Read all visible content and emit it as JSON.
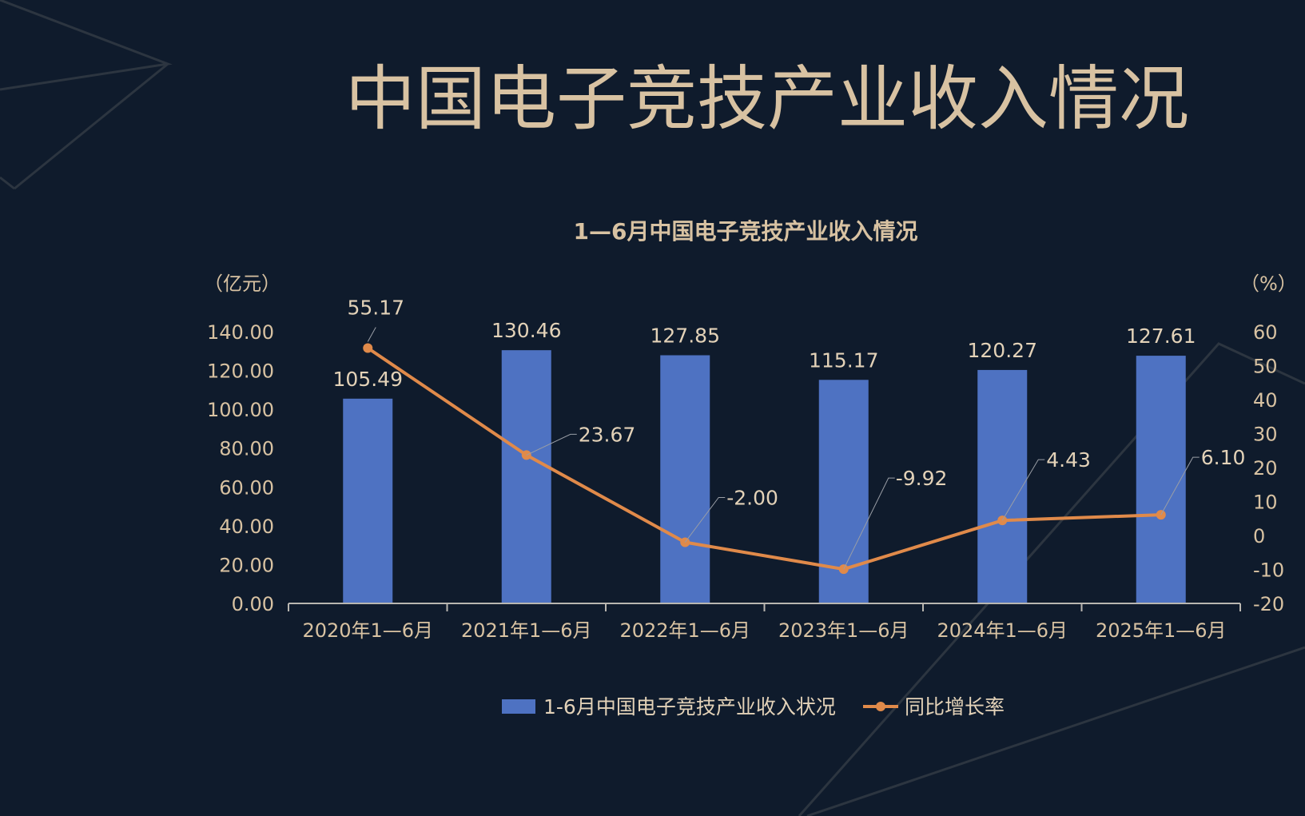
{
  "page": {
    "main_title": "中国电子竞技产业收入情况"
  },
  "colors": {
    "background": "#0f1b2c",
    "bar": "#4e72c2",
    "line": "#e08a4a",
    "text": "#d8c2a2",
    "axis": "#b9b6b0"
  },
  "chart_data": {
    "type": "bar",
    "title": "1—6月中国电子竞技产业收入情况",
    "left_unit": "（亿元）",
    "right_unit": "（%）",
    "categories": [
      "2020年1—6月",
      "2021年1—6月",
      "2022年1—6月",
      "2023年1—6月",
      "2024年1—6月",
      "2025年1—6月"
    ],
    "series": [
      {
        "name": "1-6月中国电子竞技产业收入状况",
        "type": "bar",
        "axis": "left",
        "values": [
          105.49,
          130.46,
          127.85,
          115.17,
          120.27,
          127.61
        ],
        "labels": [
          "105.49",
          "130.46",
          "127.85",
          "115.17",
          "120.27",
          "127.61"
        ]
      },
      {
        "name": "同比增长率",
        "type": "line",
        "axis": "right",
        "values": [
          55.17,
          23.67,
          -2.0,
          -9.92,
          4.43,
          6.1
        ],
        "labels": [
          "55.17",
          "23.67",
          "-2.00",
          "-9.92",
          "4.43",
          "6.10"
        ]
      }
    ],
    "left_axis": {
      "range": [
        0,
        140
      ],
      "ticks": [
        "0.00",
        "20.00",
        "40.00",
        "60.00",
        "80.00",
        "100.00",
        "120.00",
        "140.00"
      ]
    },
    "right_axis": {
      "range": [
        -20,
        60
      ],
      "ticks": [
        "-20",
        "-10",
        "0",
        "10",
        "20",
        "30",
        "40",
        "50",
        "60"
      ]
    },
    "grid": false,
    "legend_position": "bottom"
  }
}
